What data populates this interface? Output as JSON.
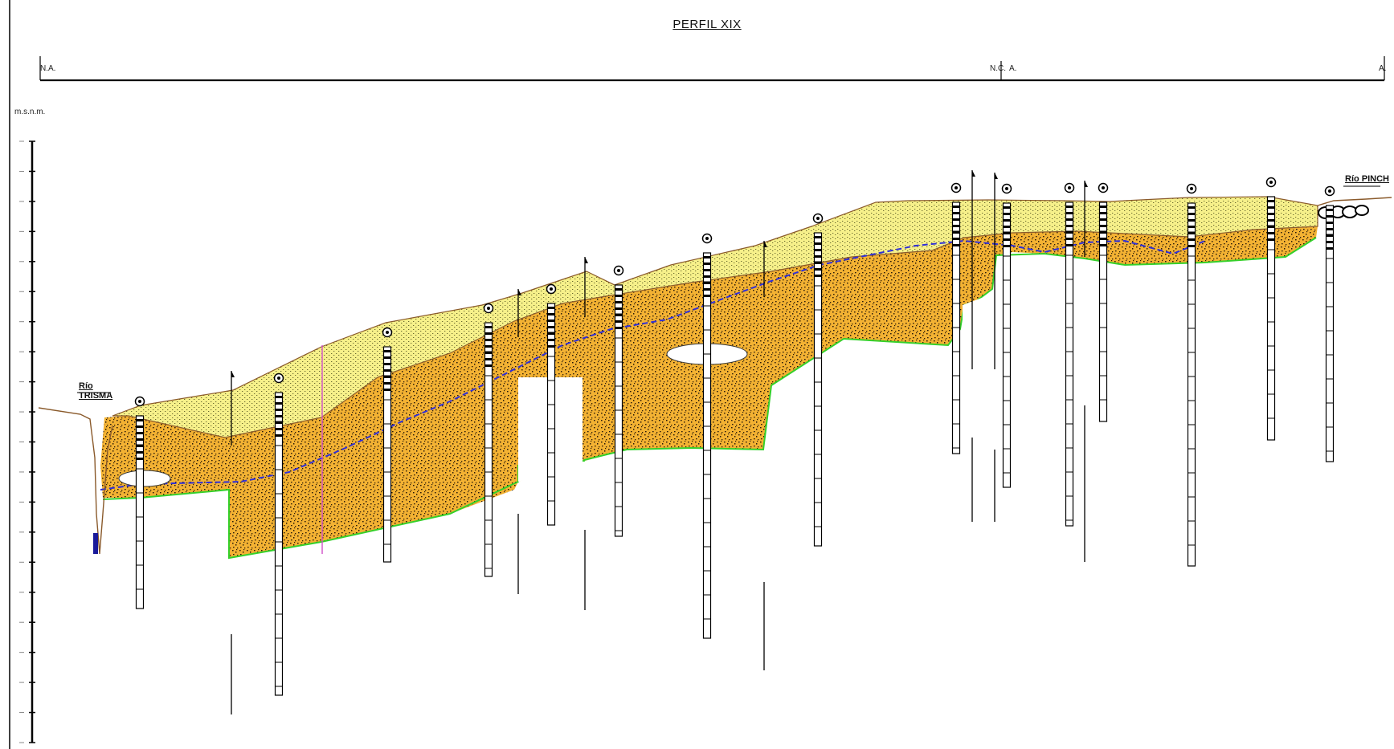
{
  "title": "PERFIL XIX",
  "profile_line": {
    "left_label": "N.A.",
    "mid_left_label": "N.C.",
    "mid_right_label": "A.",
    "right_label": "A."
  },
  "elevation_axis": {
    "unit_label": "m.s.n.m.",
    "tick_count": 21
  },
  "rivers": [
    {
      "line1": "Río",
      "line2": "TRISMA"
    },
    {
      "line1": "Río PINCH",
      "line2": ""
    }
  ],
  "colors": {
    "upper_layer": "#f6f08a",
    "lower_layer": "#f3b233",
    "water_table": "#2f2fd8",
    "base_line": "#35d02a",
    "river_water": "#1a1a9a",
    "terrain_line": "#8a5a2b"
  }
}
